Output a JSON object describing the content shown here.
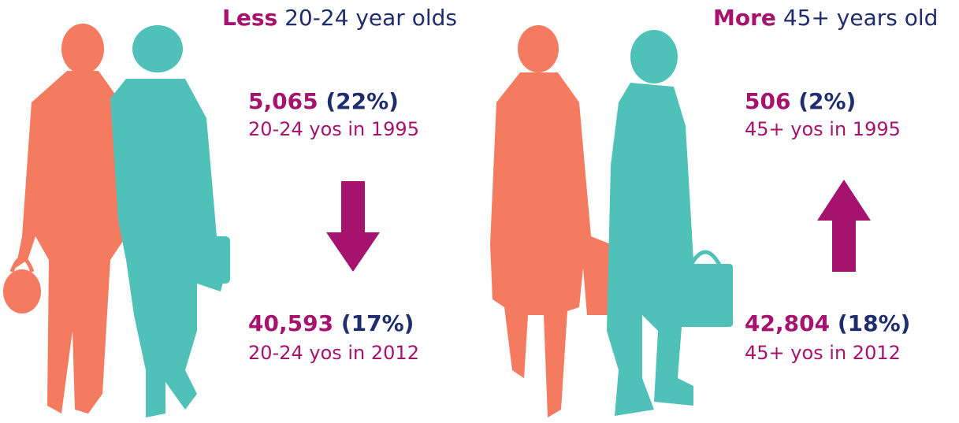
{
  "panels": [
    {
      "heading": {
        "emphasis": "Less",
        "rest": "20-24 year olds"
      },
      "stats": [
        {
          "number": "5,065",
          "percent": "(22%)",
          "caption": "20-24 yos in 1995"
        },
        {
          "number": "40,593",
          "percent": "(17%)",
          "caption": "20-24 yos in 2012"
        }
      ]
    },
    {
      "heading": {
        "emphasis": "More",
        "rest": "45+ years old"
      },
      "stats": [
        {
          "number": "506",
          "percent": "(2%)",
          "caption": "45+ yos in 1995"
        },
        {
          "number": "42,804",
          "percent": "(18%)",
          "caption": "45+ yos in 2012"
        }
      ]
    }
  ]
}
